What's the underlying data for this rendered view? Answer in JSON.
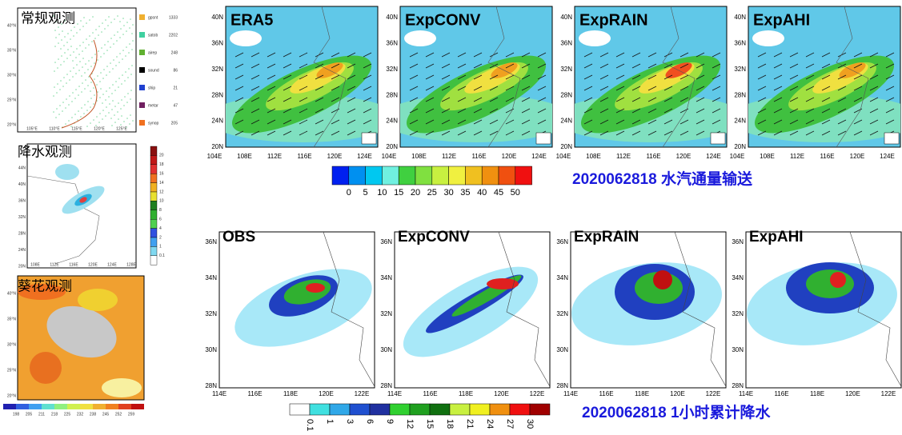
{
  "left": {
    "conv": {
      "title": "常规观测",
      "lat_labels": [
        "40°N",
        "35°N",
        "30°N",
        "25°N",
        "20°N"
      ],
      "lon_labels": [
        "105°E",
        "110°E",
        "115°E",
        "120°E",
        "125°E"
      ],
      "legend": [
        {
          "name": "gpsnt",
          "count": "1333"
        },
        {
          "name": "satob",
          "count": "2202"
        },
        {
          "name": "airep",
          "count": "248"
        },
        {
          "name": "sound",
          "count": "86"
        },
        {
          "name": "ship",
          "count": "21"
        },
        {
          "name": "metar",
          "count": "47"
        },
        {
          "name": "synop",
          "count": "205"
        }
      ]
    },
    "rain": {
      "title": "降水观测",
      "lat_labels": [
        "44N",
        "40N",
        "36N",
        "32N",
        "28N",
        "24N",
        "20N"
      ],
      "lon_labels": [
        "108E",
        "112E",
        "116E",
        "120E",
        "124E",
        "128E"
      ],
      "colorbar": [
        "20",
        "18",
        "16",
        "14",
        "12",
        "10",
        "8",
        "6",
        "4",
        "2",
        "1",
        "0.1"
      ]
    },
    "himawari": {
      "title": "葵花观测",
      "lat_labels": [
        "40°N",
        "35°N",
        "30°N",
        "25°N",
        "20°N"
      ],
      "colorbar": [
        "198",
        "205",
        "211",
        "218",
        "225",
        "232",
        "238",
        "245",
        "252",
        "259"
      ]
    }
  },
  "top": {
    "panels": [
      "ERA5",
      "ExpCONV",
      "ExpRAIN",
      "ExpAHI"
    ],
    "lat_labels": [
      "40N",
      "36N",
      "32N",
      "28N",
      "24N",
      "20N"
    ],
    "lon_labels": [
      "104E",
      "108E",
      "112E",
      "116E",
      "120E",
      "124E"
    ],
    "colorbar": [
      "0",
      "5",
      "10",
      "15",
      "20",
      "25",
      "30",
      "35",
      "40",
      "45",
      "50"
    ],
    "caption": "2020062818 水汽通量输送"
  },
  "bottom": {
    "panels": [
      "OBS",
      "ExpCONV",
      "ExpRAIN",
      "ExpAHI"
    ],
    "lat_labels": [
      "36N",
      "34N",
      "32N",
      "30N",
      "28N"
    ],
    "lon_labels": [
      "114E",
      "116E",
      "118E",
      "120E",
      "122E"
    ],
    "colorbar": [
      "0.1",
      "1",
      "3",
      "6",
      "9",
      "12",
      "15",
      "18",
      "21",
      "24",
      "27",
      "30"
    ],
    "caption": "2020062818 1小时累计降水"
  }
}
